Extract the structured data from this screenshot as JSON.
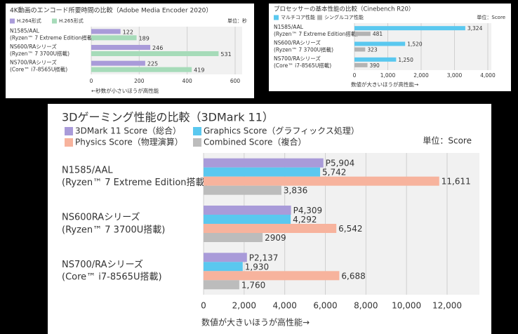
{
  "chart_data": [
    {
      "type": "bar",
      "title": "4K動画のエンコード所要時間の比較（Adobe Media Encoder 2020）",
      "unit": "単位：秒",
      "note": "←秒数が小さいほうが高性能",
      "categories": [
        [
          "N1585/AAL",
          "(Ryzen™ 7 Extreme Edition搭載)"
        ],
        [
          "NS600/RAシリーズ",
          "(Ryzen™ 7 3700U搭載)"
        ],
        [
          "NS700/RAシリーズ",
          "(Core™ i7-8565U搭載)"
        ]
      ],
      "series": [
        {
          "name": "H.264形式",
          "color": "#a99bd9",
          "values": [
            122,
            246,
            225
          ]
        },
        {
          "name": "H.265形式",
          "color": "#a6dbb9",
          "values": [
            189,
            531,
            419
          ]
        }
      ],
      "xlim": [
        0,
        600
      ],
      "xticks": [
        0,
        200,
        400,
        600
      ],
      "grid": true
    },
    {
      "type": "bar",
      "title": "プロセッサーの基本性能の比較（Cinebench R20）",
      "unit": "単位：Score",
      "note": "数値が大きいほうが高性能→",
      "categories": [
        [
          "N1585/AAL",
          "(Ryzen™ 7 Extreme Edition搭載)"
        ],
        [
          "NS600/RAシリーズ",
          "(Ryzen™ 7 3700U搭載)"
        ],
        [
          "NS700/RAシリーズ",
          "(Core™ i7-8565U搭載)"
        ]
      ],
      "series": [
        {
          "name": "マルチコア性能",
          "color": "#5ac8ef",
          "values": [
            3324,
            1520,
            1250
          ],
          "value_labels": [
            "3,324",
            "1,520",
            "1,250"
          ]
        },
        {
          "name": "シングルコア性能",
          "color": "#b3b3b3",
          "values": [
            481,
            323,
            390
          ]
        }
      ],
      "xlim": [
        0,
        4000
      ],
      "xticks": [
        0,
        {
          "value": 1000,
          "label": "1,000"
        },
        {
          "value": 2000,
          "label": "2,000"
        },
        {
          "value": 3000,
          "label": "3,000"
        },
        {
          "value": 4000,
          "label": "4,000"
        }
      ],
      "grid": true
    },
    {
      "type": "bar",
      "title": "3Dゲーミング性能の比較（3DMark 11）",
      "unit": "単位：Score",
      "note": "数値が大きいほうが高性能→",
      "categories": [
        [
          "N1585/AAL",
          "(Ryzen™ 7 Extreme Edition搭載)"
        ],
        [
          "NS600RAシリーズ",
          "(Ryzen™ 7 3700U搭載)"
        ],
        [
          "NS700/RAシリーズ",
          "(Core™ i7-8565U搭載)"
        ]
      ],
      "series": [
        {
          "name": "3DMark 11 Score（総合）",
          "color": "#a99bd9",
          "values": [
            5904,
            4309,
            2137
          ],
          "value_labels": [
            "P5,904",
            "P4,309",
            "P2,137"
          ]
        },
        {
          "name": "Graphics Score（グラフィックス処理）",
          "color": "#5ac8ef",
          "values": [
            5742,
            4292,
            1930
          ],
          "value_labels": [
            "5,742",
            "4,292",
            "1,930"
          ]
        },
        {
          "name": "Physics Score（物理演算）",
          "color": "#f7b39d",
          "values": [
            11611,
            6542,
            6688
          ],
          "value_labels": [
            "11,611",
            "6,542",
            "6,688"
          ]
        },
        {
          "name": "Combined Score（複合）",
          "color": "#bcbcbc",
          "values": [
            3836,
            2909,
            1760
          ],
          "value_labels": [
            "3,836",
            "2909",
            "1,760"
          ]
        }
      ],
      "xlim": [
        0,
        12000
      ],
      "xticks": [
        0,
        {
          "value": 2000,
          "label": "2,000"
        },
        {
          "value": 4000,
          "label": "4,000"
        },
        {
          "value": 6000,
          "label": "6,000"
        },
        {
          "value": 8000,
          "label": "8,000"
        },
        {
          "value": 10000,
          "label": "10,000"
        },
        {
          "value": 12000,
          "label": "12,000"
        }
      ],
      "grid": true
    }
  ]
}
